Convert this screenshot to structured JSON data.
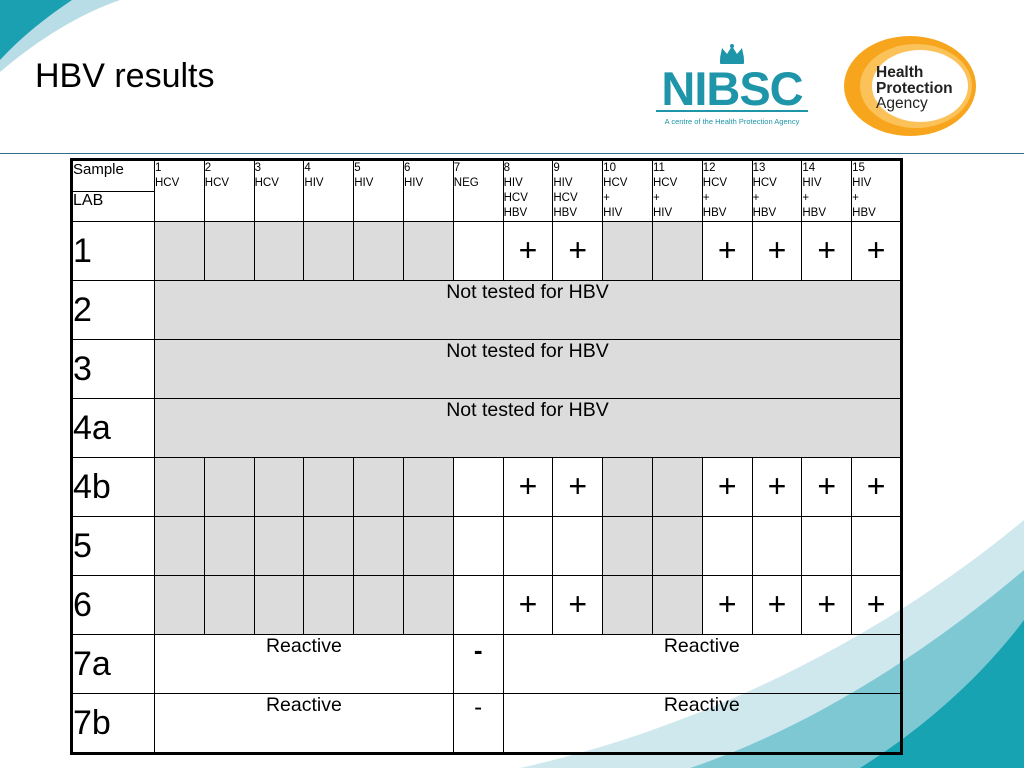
{
  "slide": {
    "title": "HBV results"
  },
  "logos": {
    "nibsc": {
      "name": "NIBSC",
      "tagline": "A centre of the Health Protection Agency"
    },
    "hpa": {
      "line1": "Health",
      "line2": "Protection",
      "line3": "Agency"
    }
  },
  "colors": {
    "teal": "#1e95a8",
    "orange": "#f5a623",
    "cell_shade": "#dcdcdc"
  },
  "table": {
    "sample_label": "Sample",
    "lab_label": "LAB",
    "columns": [
      {
        "num": "1",
        "lines": [
          "HCV"
        ]
      },
      {
        "num": "2",
        "lines": [
          "HCV"
        ]
      },
      {
        "num": "3",
        "lines": [
          "HCV"
        ]
      },
      {
        "num": "4",
        "lines": [
          "HIV"
        ]
      },
      {
        "num": "5",
        "lines": [
          "HIV"
        ]
      },
      {
        "num": "6",
        "lines": [
          "HIV"
        ]
      },
      {
        "num": "7",
        "lines": [
          "NEG"
        ]
      },
      {
        "num": "8",
        "lines": [
          "HIV",
          "HCV",
          "HBV"
        ]
      },
      {
        "num": "9",
        "lines": [
          "HIV",
          "HCV",
          "HBV"
        ]
      },
      {
        "num": "10",
        "lines": [
          "HCV",
          "+",
          "HIV"
        ]
      },
      {
        "num": "11",
        "lines": [
          "HCV",
          "+",
          "HIV"
        ]
      },
      {
        "num": "12",
        "lines": [
          "HCV",
          "+",
          "HBV"
        ]
      },
      {
        "num": "13",
        "lines": [
          "HCV",
          "+",
          "HBV"
        ]
      },
      {
        "num": "14",
        "lines": [
          "HIV",
          "+",
          "HBV"
        ]
      },
      {
        "num": "15",
        "lines": [
          "HIV",
          "+",
          "HBV"
        ]
      }
    ],
    "shaded_columns": [
      1,
      2,
      3,
      4,
      5,
      6,
      10,
      11
    ],
    "rows": [
      {
        "lab": "1",
        "type": "cells",
        "cells": [
          "",
          "",
          "",
          "",
          "",
          "",
          "",
          "+",
          "+",
          "",
          "",
          "+",
          "+",
          "+",
          "+"
        ]
      },
      {
        "lab": "2",
        "type": "note",
        "note": "Not tested for HBV"
      },
      {
        "lab": "3",
        "type": "note",
        "note": "Not tested for HBV"
      },
      {
        "lab": "4a",
        "type": "note",
        "note": "Not tested for HBV"
      },
      {
        "lab": "4b",
        "type": "cells",
        "cells": [
          "",
          "",
          "",
          "",
          "",
          "",
          "",
          "+",
          "+",
          "",
          "",
          "+",
          "+",
          "+",
          "+"
        ]
      },
      {
        "lab": "5",
        "type": "cells",
        "cells": [
          "",
          "",
          "",
          "",
          "",
          "",
          "",
          "",
          "",
          "",
          "",
          "",
          "",
          "",
          ""
        ]
      },
      {
        "lab": "6",
        "type": "cells",
        "cells": [
          "",
          "",
          "",
          "",
          "",
          "",
          "",
          "+",
          "+",
          "",
          "",
          "+",
          "+",
          "+",
          "+"
        ]
      },
      {
        "lab": "7a",
        "type": "reactive",
        "left": "Reactive",
        "mid": "-",
        "right": "Reactive"
      },
      {
        "lab": "7b",
        "type": "reactive",
        "left": "Reactive",
        "mid": "-",
        "right": "Reactive"
      }
    ]
  }
}
